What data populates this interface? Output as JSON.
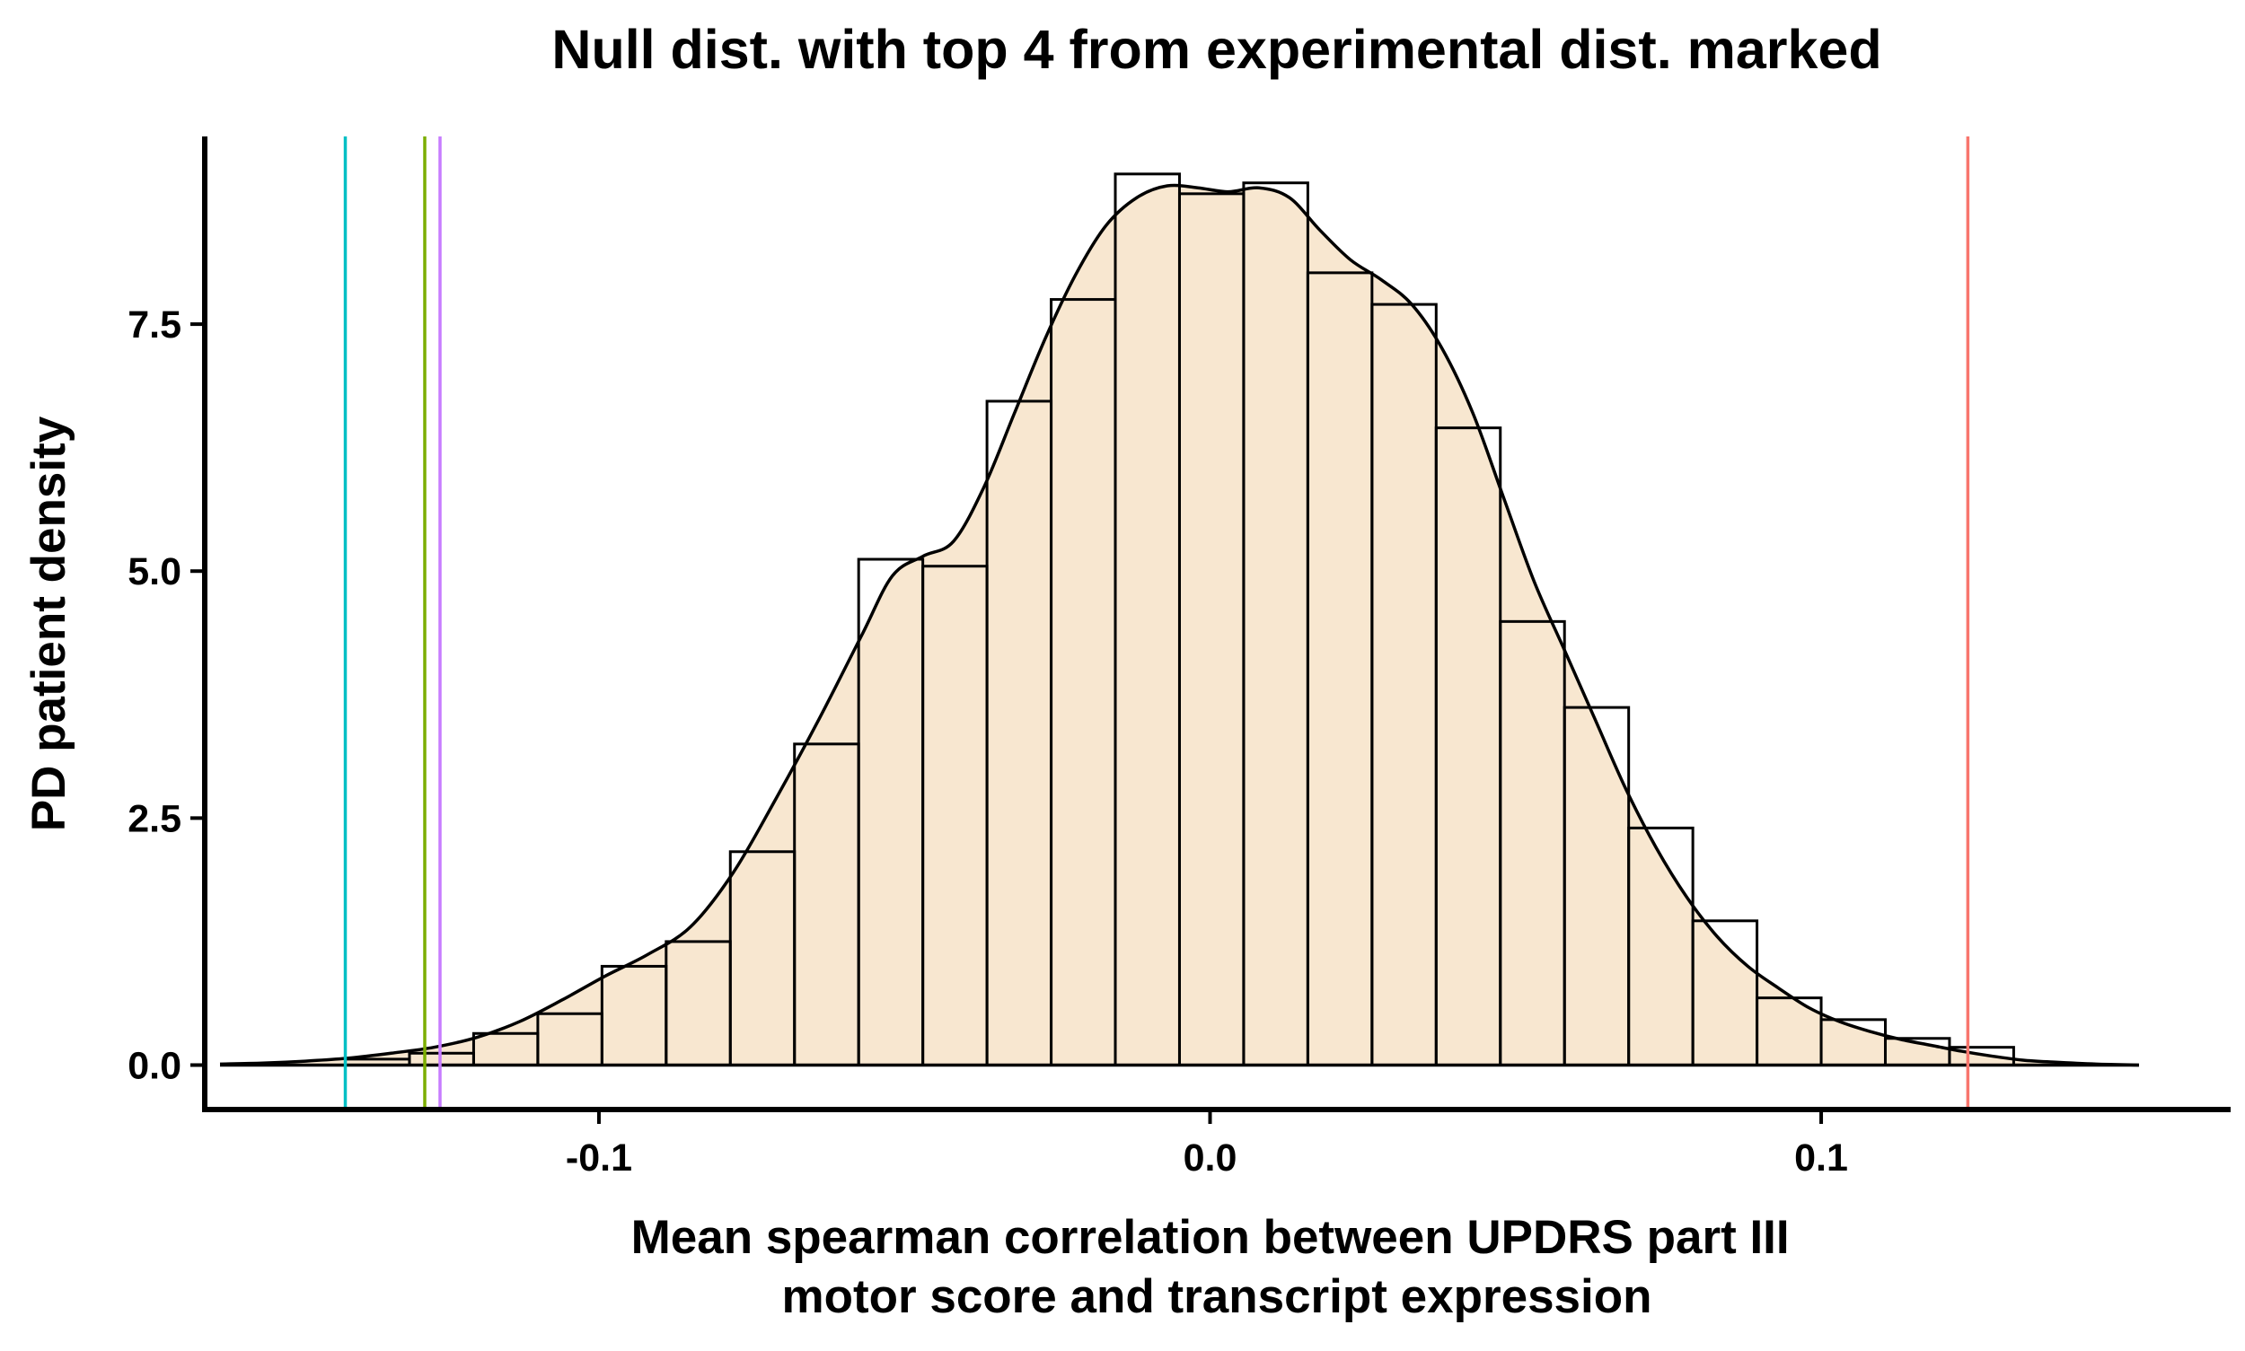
{
  "chart_data": {
    "type": "histogram",
    "title": "Null dist. with top 4 from experimental dist. marked",
    "xlabel_lines": [
      "Mean spearman correlation between UPDRS part III",
      "motor score and transcript expression"
    ],
    "ylabel": "PD patient density",
    "xlim": [
      -0.1645,
      0.167
    ],
    "ylim": [
      -0.45,
      9.4
    ],
    "x_ticks": [
      {
        "value": -0.1,
        "label": "-0.1"
      },
      {
        "value": 0.0,
        "label": "0.0"
      },
      {
        "value": 0.1,
        "label": "0.1"
      }
    ],
    "y_ticks": [
      {
        "value": 0.0,
        "label": "0.0"
      },
      {
        "value": 2.5,
        "label": "2.5"
      },
      {
        "value": 5.0,
        "label": "5.0"
      },
      {
        "value": 7.5,
        "label": "7.5"
      }
    ],
    "bin_edges": [
      -0.1415,
      -0.131,
      -0.1205,
      -0.11,
      -0.0995,
      -0.089,
      -0.0785,
      -0.068,
      -0.0575,
      -0.047,
      -0.0365,
      -0.026,
      -0.0155,
      -0.005,
      0.0055,
      0.016,
      0.0265,
      0.037,
      0.0475,
      0.058,
      0.0685,
      0.079,
      0.0895,
      0.1,
      0.1105,
      0.121,
      0.1315
    ],
    "bin_densities": [
      0.06,
      0.12,
      0.32,
      0.52,
      1.0,
      1.25,
      2.16,
      3.25,
      5.12,
      5.05,
      6.72,
      7.75,
      9.02,
      8.82,
      8.93,
      8.02,
      7.7,
      6.45,
      4.49,
      3.62,
      2.4,
      1.46,
      0.68,
      0.46,
      0.27,
      0.18
    ],
    "bar_fill": "#f8e7d0",
    "bar_stroke": "#000000",
    "density_curve": [
      [
        -0.162,
        0.01
      ],
      [
        -0.155,
        0.02
      ],
      [
        -0.148,
        0.04
      ],
      [
        -0.141,
        0.07
      ],
      [
        -0.134,
        0.12
      ],
      [
        -0.127,
        0.18
      ],
      [
        -0.12,
        0.28
      ],
      [
        -0.113,
        0.44
      ],
      [
        -0.106,
        0.66
      ],
      [
        -0.099,
        0.9
      ],
      [
        -0.092,
        1.12
      ],
      [
        -0.085,
        1.4
      ],
      [
        -0.078,
        1.95
      ],
      [
        -0.071,
        2.7
      ],
      [
        -0.064,
        3.5
      ],
      [
        -0.057,
        4.35
      ],
      [
        -0.052,
        4.95
      ],
      [
        -0.047,
        5.15
      ],
      [
        -0.042,
        5.3
      ],
      [
        -0.037,
        5.85
      ],
      [
        -0.032,
        6.6
      ],
      [
        -0.027,
        7.35
      ],
      [
        -0.022,
        8.0
      ],
      [
        -0.017,
        8.5
      ],
      [
        -0.012,
        8.78
      ],
      [
        -0.007,
        8.9
      ],
      [
        -0.002,
        8.88
      ],
      [
        0.003,
        8.84
      ],
      [
        0.008,
        8.88
      ],
      [
        0.013,
        8.78
      ],
      [
        0.018,
        8.45
      ],
      [
        0.023,
        8.15
      ],
      [
        0.028,
        7.95
      ],
      [
        0.033,
        7.7
      ],
      [
        0.038,
        7.25
      ],
      [
        0.043,
        6.6
      ],
      [
        0.048,
        5.75
      ],
      [
        0.053,
        4.9
      ],
      [
        0.058,
        4.2
      ],
      [
        0.063,
        3.5
      ],
      [
        0.068,
        2.8
      ],
      [
        0.073,
        2.2
      ],
      [
        0.078,
        1.7
      ],
      [
        0.083,
        1.3
      ],
      [
        0.088,
        1.0
      ],
      [
        0.093,
        0.78
      ],
      [
        0.098,
        0.58
      ],
      [
        0.103,
        0.44
      ],
      [
        0.108,
        0.34
      ],
      [
        0.113,
        0.26
      ],
      [
        0.118,
        0.2
      ],
      [
        0.123,
        0.14
      ],
      [
        0.128,
        0.09
      ],
      [
        0.133,
        0.05
      ],
      [
        0.138,
        0.03
      ],
      [
        0.145,
        0.01
      ],
      [
        0.152,
        0.0
      ]
    ],
    "density_line_color": "#000000",
    "baseline_range": [
      -0.162,
      0.152
    ],
    "marked_lines": [
      {
        "x": -0.1415,
        "color": "#00bfc4"
      },
      {
        "x": -0.1285,
        "color": "#7cae00"
      },
      {
        "x": -0.126,
        "color": "#c77cff"
      },
      {
        "x": 0.124,
        "color": "#f8766d"
      }
    ]
  }
}
